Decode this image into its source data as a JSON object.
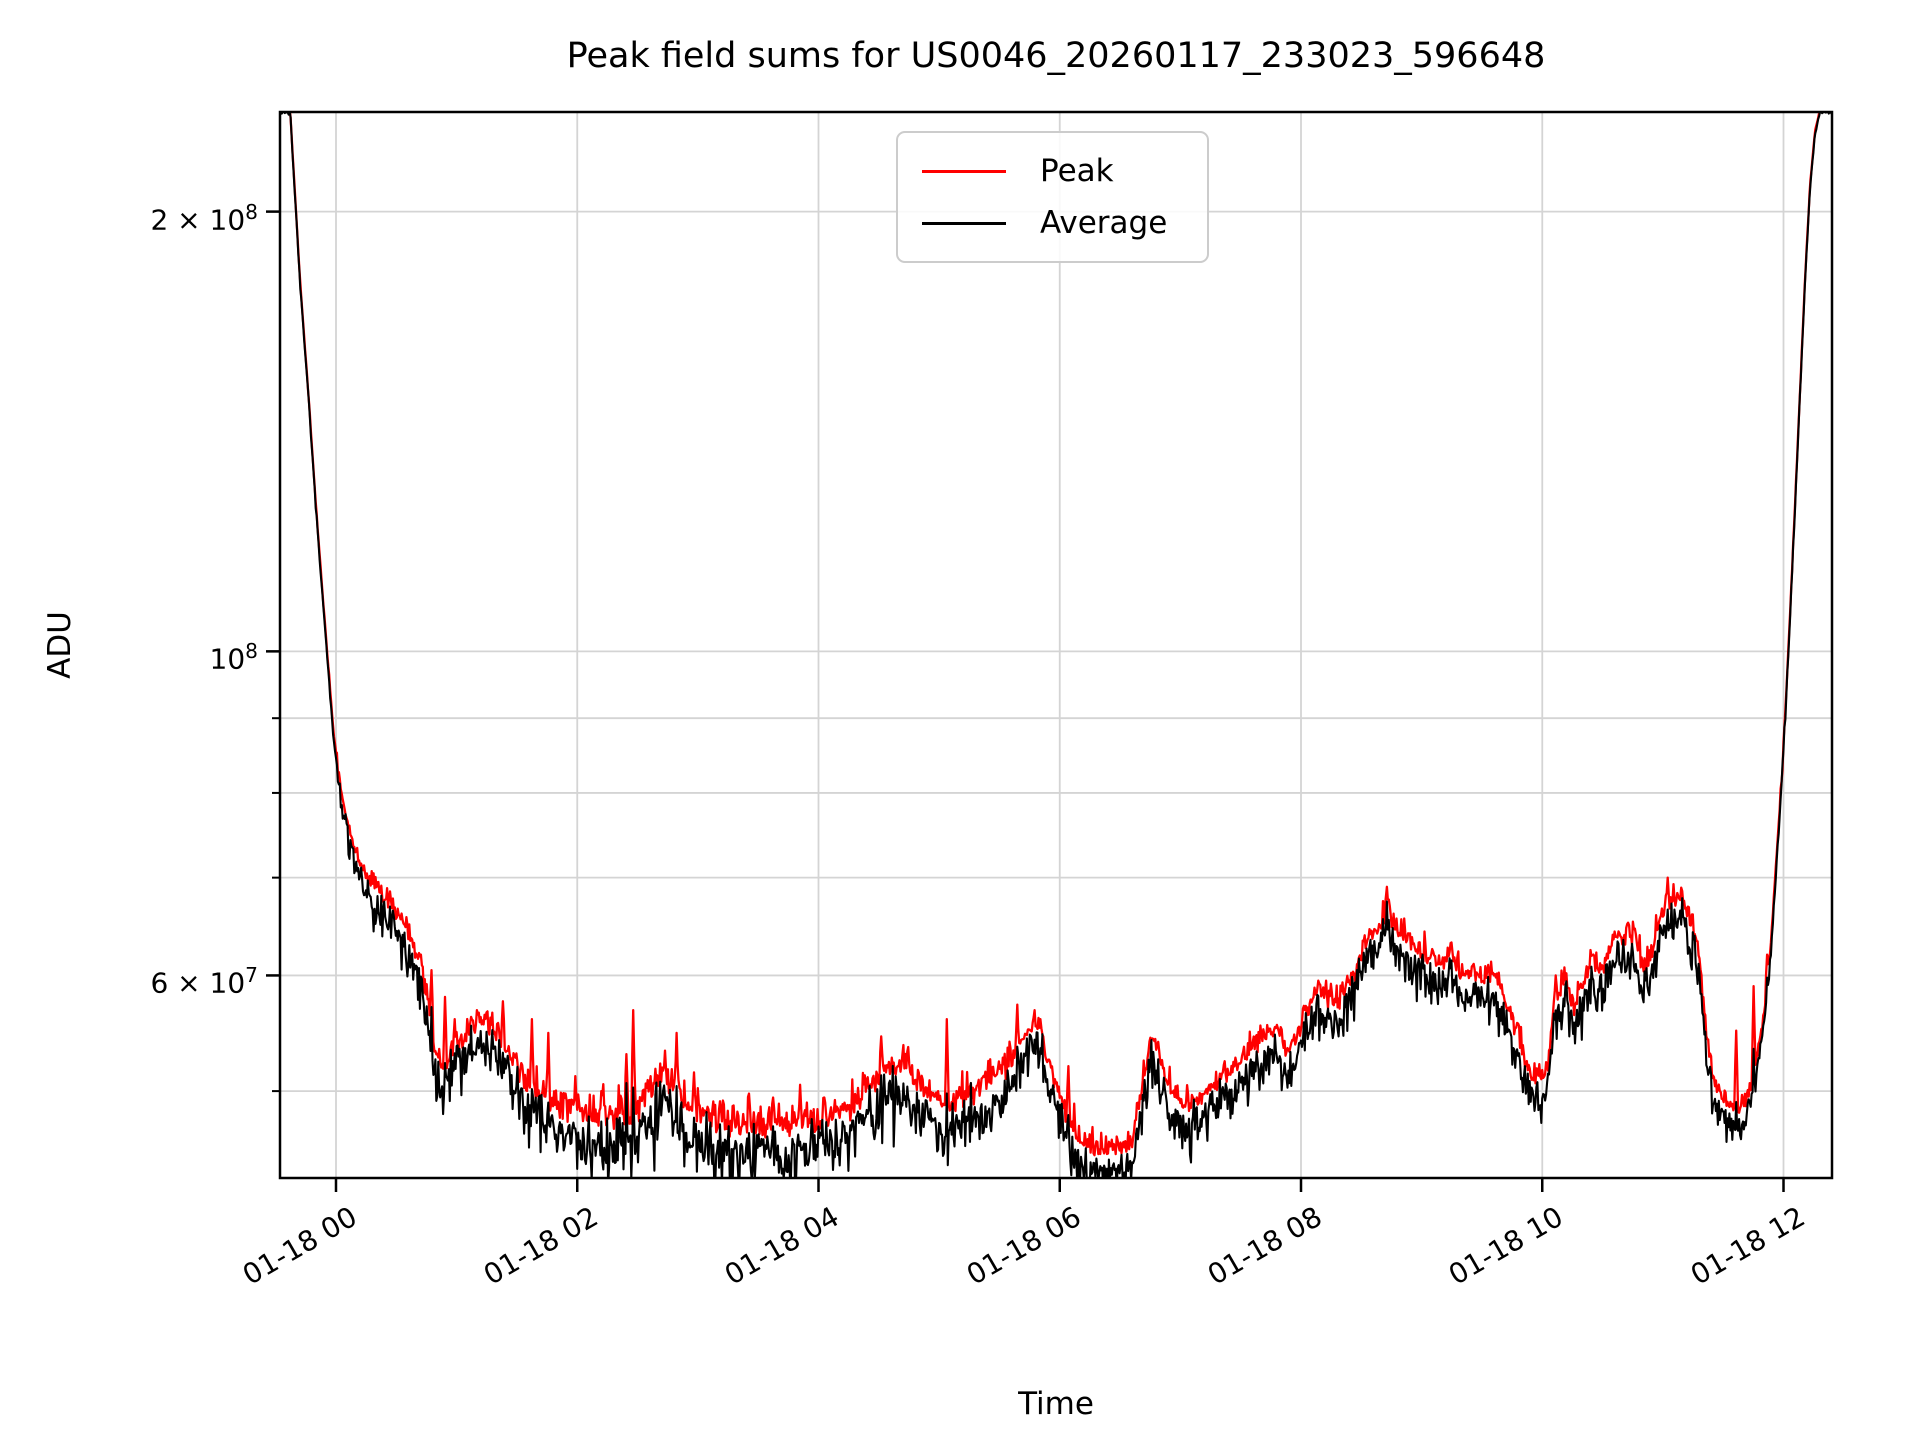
{
  "figure": {
    "background": "#ffffff",
    "grid_color": "#d4d4d4",
    "spine_color": "#000000"
  },
  "legend": {
    "entries": [
      {
        "label": "Peak",
        "color": "#ff0000"
      },
      {
        "label": "Average",
        "color": "#000000"
      }
    ]
  },
  "chart_data": {
    "type": "line",
    "title": "Peak field sums for US0046_20260117_233023_596648",
    "xlabel": "Time",
    "ylabel": "ADU",
    "yscale": "log",
    "grid": "both",
    "legend_position": "top-center",
    "x_unit": "hours relative to 01-18 00:00",
    "xlim": [
      -0.4642,
      12.402
    ],
    "ylim": [
      43600000.0,
      234000000.0
    ],
    "x_tick_hours": [
      0,
      2,
      4,
      6,
      8,
      10,
      12
    ],
    "x_tick_labels": [
      "01-18 00",
      "01-18 02",
      "01-18 04",
      "01-18 06",
      "01-18 08",
      "01-18 10",
      "01-18 12"
    ],
    "y_ticks": [
      {
        "value": 200000000.0,
        "base": "2 × 10",
        "exp": "8",
        "labeled": true
      },
      {
        "value": 100000000.0,
        "base": "10",
        "exp": "8",
        "labeled": true
      },
      {
        "value": 90000000.0,
        "labeled": false
      },
      {
        "value": 80000000.0,
        "labeled": false
      },
      {
        "value": 70000000.0,
        "labeled": false
      },
      {
        "value": 60000000.0,
        "base": "6 × 10",
        "exp": "7",
        "labeled": true
      },
      {
        "value": 50000000.0,
        "labeled": false
      }
    ],
    "series": [
      {
        "name": "Average",
        "color": "#000000",
        "anchors": [
          [
            -0.47,
            234000000.0
          ],
          [
            -0.38,
            234000000.0
          ],
          [
            -0.34,
            205000000.0
          ],
          [
            -0.3,
            180000000.0
          ],
          [
            -0.26,
            162000000.0
          ],
          [
            -0.22,
            146000000.0
          ],
          [
            -0.18,
            130000000.0
          ],
          [
            -0.14,
            117000000.0
          ],
          [
            -0.1,
            106000000.0
          ],
          [
            -0.06,
            96000000.0
          ],
          [
            -0.02,
            87000000.0
          ],
          [
            0.02,
            81500000.0
          ],
          [
            0.06,
            77500000.0
          ],
          [
            0.1,
            75000000.0
          ],
          [
            0.15,
            72000000.0
          ],
          [
            0.22,
            69500000.0
          ],
          [
            0.3,
            67500000.0
          ],
          [
            0.38,
            66200000.0
          ],
          [
            0.46,
            65000000.0
          ],
          [
            0.55,
            63500000.0
          ],
          [
            0.62,
            61500000.0
          ],
          [
            0.7,
            59000000.0
          ],
          [
            0.76,
            55500000.0
          ],
          [
            0.82,
            51500000.0
          ],
          [
            0.88,
            50000000.0
          ],
          [
            0.95,
            51200000.0
          ],
          [
            1.05,
            52500000.0
          ],
          [
            1.15,
            53500000.0
          ],
          [
            1.22,
            54000000.0
          ],
          [
            1.32,
            52800000.0
          ],
          [
            1.42,
            51200000.0
          ],
          [
            1.52,
            49500000.0
          ],
          [
            1.62,
            48200000.0
          ],
          [
            1.75,
            47200000.0
          ],
          [
            1.9,
            46600000.0
          ],
          [
            2.1,
            46000000.0
          ],
          [
            2.3,
            46000000.0
          ],
          [
            2.5,
            46800000.0
          ],
          [
            2.62,
            48200000.0
          ],
          [
            2.72,
            48800000.0
          ],
          [
            2.82,
            47800000.0
          ],
          [
            2.95,
            46500000.0
          ],
          [
            3.1,
            45800000.0
          ],
          [
            3.3,
            45500000.0
          ],
          [
            3.5,
            45300000.0
          ],
          [
            3.7,
            45500000.0
          ],
          [
            3.9,
            45500000.0
          ],
          [
            4.1,
            46000000.0
          ],
          [
            4.26,
            46500000.0
          ],
          [
            4.45,
            48500000.0
          ],
          [
            4.6,
            49500000.0
          ],
          [
            4.72,
            50000000.0
          ],
          [
            4.82,
            48500000.0
          ],
          [
            4.92,
            47700000.0
          ],
          [
            5.05,
            47000000.0
          ],
          [
            5.2,
            47500000.0
          ],
          [
            5.4,
            48500000.0
          ],
          [
            5.6,
            50500000.0
          ],
          [
            5.75,
            53000000.0
          ],
          [
            5.82,
            53500000.0
          ],
          [
            5.9,
            50500000.0
          ],
          [
            6.0,
            47500000.0
          ],
          [
            6.1,
            45500000.0
          ],
          [
            6.2,
            44400000.0
          ],
          [
            6.35,
            43800000.0
          ],
          [
            6.5,
            43800000.0
          ],
          [
            6.6,
            44500000.0
          ],
          [
            6.7,
            49500000.0
          ],
          [
            6.76,
            52800000.0
          ],
          [
            6.82,
            51000000.0
          ],
          [
            6.91,
            48500000.0
          ],
          [
            7.0,
            47500000.0
          ],
          [
            7.1,
            47200000.0
          ],
          [
            7.2,
            48000000.0
          ],
          [
            7.3,
            49000000.0
          ],
          [
            7.45,
            50000000.0
          ],
          [
            7.6,
            51500000.0
          ],
          [
            7.75,
            53000000.0
          ],
          [
            7.82,
            53000000.0
          ],
          [
            7.88,
            51200000.0
          ],
          [
            7.95,
            52000000.0
          ],
          [
            8.0,
            53500000.0
          ],
          [
            8.08,
            55500000.0
          ],
          [
            8.14,
            56800000.0
          ],
          [
            8.22,
            56000000.0
          ],
          [
            8.3,
            55500000.0
          ],
          [
            8.4,
            57500000.0
          ],
          [
            8.5,
            60000000.0
          ],
          [
            8.6,
            62000000.0
          ],
          [
            8.68,
            63000000.0
          ],
          [
            8.71,
            65000000.0
          ],
          [
            8.74,
            63000000.0
          ],
          [
            8.82,
            62000000.0
          ],
          [
            8.93,
            61000000.0
          ],
          [
            9.0,
            60000000.0
          ],
          [
            9.08,
            59500000.0
          ],
          [
            9.18,
            59000000.0
          ],
          [
            9.25,
            60000000.0
          ],
          [
            9.32,
            58000000.0
          ],
          [
            9.42,
            58200000.0
          ],
          [
            9.5,
            57500000.0
          ],
          [
            9.56,
            58200000.0
          ],
          [
            9.64,
            57200000.0
          ],
          [
            9.72,
            55000000.0
          ],
          [
            9.8,
            52800000.0
          ],
          [
            9.86,
            50500000.0
          ],
          [
            9.93,
            49500000.0
          ],
          [
            10.0,
            49500000.0
          ],
          [
            10.05,
            50500000.0
          ],
          [
            10.09,
            55000000.0
          ],
          [
            10.15,
            57000000.0
          ],
          [
            10.2,
            58000000.0
          ],
          [
            10.26,
            55000000.0
          ],
          [
            10.32,
            57000000.0
          ],
          [
            10.38,
            58500000.0
          ],
          [
            10.42,
            60000000.0
          ],
          [
            10.46,
            58700000.0
          ],
          [
            10.52,
            59000000.0
          ],
          [
            10.58,
            61500000.0
          ],
          [
            10.62,
            62500000.0
          ],
          [
            10.67,
            61500000.0
          ],
          [
            10.72,
            62000000.0
          ],
          [
            10.78,
            61000000.0
          ],
          [
            10.84,
            58800000.0
          ],
          [
            10.9,
            60000000.0
          ],
          [
            10.96,
            63000000.0
          ],
          [
            11.02,
            65000000.0
          ],
          [
            11.08,
            65500000.0
          ],
          [
            11.15,
            65500000.0
          ],
          [
            11.2,
            64000000.0
          ],
          [
            11.26,
            62500000.0
          ],
          [
            11.31,
            59000000.0
          ],
          [
            11.36,
            53000000.0
          ],
          [
            11.4,
            50000000.0
          ],
          [
            11.45,
            48500000.0
          ],
          [
            11.5,
            47800000.0
          ],
          [
            11.56,
            47300000.0
          ],
          [
            11.62,
            47200000.0
          ],
          [
            11.68,
            47800000.0
          ],
          [
            11.74,
            49500000.0
          ],
          [
            11.8,
            53000000.0
          ],
          [
            11.85,
            56500000.0
          ],
          [
            11.9,
            63000000.0
          ],
          [
            11.94,
            71000000.0
          ],
          [
            11.98,
            80000000.0
          ],
          [
            12.02,
            92000000.0
          ],
          [
            12.06,
            108000000.0
          ],
          [
            12.1,
            128000000.0
          ],
          [
            12.14,
            152000000.0
          ],
          [
            12.18,
            180000000.0
          ],
          [
            12.22,
            208000000.0
          ],
          [
            12.26,
            226000000.0
          ],
          [
            12.3,
            234000000.0
          ],
          [
            12.4,
            234000000.0
          ]
        ]
      },
      {
        "name": "Peak",
        "color": "#ff0000",
        "relation": "average times (1+ratio) with positive noise plus spikes",
        "ratio_anchors": [
          [
            -0.47,
            0.001
          ],
          [
            -0.1,
            0.004
          ],
          [
            0.1,
            0.012
          ],
          [
            0.4,
            0.02
          ],
          [
            0.9,
            0.025
          ],
          [
            1.5,
            0.03
          ],
          [
            3.0,
            0.032
          ],
          [
            5.0,
            0.03
          ],
          [
            6.4,
            0.028
          ],
          [
            8.0,
            0.028
          ],
          [
            9.5,
            0.025
          ],
          [
            10.8,
            0.022
          ],
          [
            11.5,
            0.025
          ],
          [
            11.85,
            0.012
          ],
          [
            12.0,
            0.006
          ],
          [
            12.2,
            0.002
          ],
          [
            12.4,
            0.001
          ]
        ],
        "spikes": [
          [
            0.34,
            69500000.0
          ],
          [
            0.4,
            67500000.0
          ],
          [
            0.45,
            68500000.0
          ],
          [
            0.52,
            66000000.0
          ],
          [
            0.57,
            65000000.0
          ],
          [
            0.63,
            63500000.0
          ],
          [
            0.7,
            62000000.0
          ],
          [
            0.79,
            60500000.0
          ],
          [
            0.9,
            58000000.0
          ],
          [
            0.98,
            56000000.0
          ],
          [
            1.12,
            56200000.0
          ],
          [
            1.25,
            56600000.0
          ],
          [
            1.38,
            57600000.0
          ],
          [
            1.62,
            56000000.0
          ],
          [
            1.76,
            54800000.0
          ],
          [
            1.98,
            51200000.0
          ],
          [
            2.2,
            50000000.0
          ],
          [
            2.41,
            53000000.0
          ],
          [
            2.46,
            56800000.0
          ],
          [
            2.73,
            53300000.0
          ],
          [
            2.82,
            54800000.0
          ],
          [
            2.97,
            51500000.0
          ],
          [
            3.18,
            49200000.0
          ],
          [
            3.42,
            49800000.0
          ],
          [
            3.62,
            49500000.0
          ],
          [
            3.85,
            50500000.0
          ],
          [
            4.05,
            49500000.0
          ],
          [
            4.52,
            54500000.0
          ],
          [
            4.66,
            52000000.0
          ],
          [
            5.06,
            56000000.0
          ],
          [
            5.35,
            51000000.0
          ],
          [
            5.65,
            57300000.0
          ],
          [
            5.84,
            56000000.0
          ],
          [
            6.07,
            52000000.0
          ],
          [
            6.3,
            46200000.0
          ],
          [
            6.45,
            46000000.0
          ],
          [
            6.76,
            54200000.0
          ],
          [
            7.1,
            49500000.0
          ],
          [
            7.35,
            51500000.0
          ],
          [
            7.6,
            54000000.0
          ],
          [
            7.8,
            55500000.0
          ],
          [
            8.02,
            57200000.0
          ],
          [
            8.14,
            59500000.0
          ],
          [
            8.45,
            59500000.0
          ],
          [
            8.71,
            69000000.0
          ],
          [
            9.25,
            63200000.0
          ],
          [
            9.55,
            61000000.0
          ],
          [
            10.11,
            60000000.0
          ],
          [
            10.42,
            62000000.0
          ],
          [
            10.62,
            63700000.0
          ],
          [
            11.04,
            70000000.0
          ],
          [
            11.61,
            55000000.0
          ],
          [
            11.75,
            59000000.0
          ],
          [
            11.86,
            62000000.0
          ],
          [
            11.98,
            81500000.0
          ]
        ]
      }
    ],
    "noise": {
      "seed": 42,
      "sample_step_hours": 0.008,
      "amp_anchors_log10": [
        [
          -0.47,
          0.0006
        ],
        [
          -0.1,
          0.001
        ],
        [
          0.1,
          0.0035
        ],
        [
          0.35,
          0.006
        ],
        [
          0.8,
          0.008
        ],
        [
          1.3,
          0.0085
        ],
        [
          2.0,
          0.009
        ],
        [
          4.0,
          0.009
        ],
        [
          5.5,
          0.008
        ],
        [
          6.3,
          0.0075
        ],
        [
          7.5,
          0.007
        ],
        [
          9.0,
          0.0065
        ],
        [
          10.5,
          0.006
        ],
        [
          11.3,
          0.0065
        ],
        [
          11.75,
          0.004
        ],
        [
          11.95,
          0.0015
        ],
        [
          12.15,
          0.0008
        ],
        [
          12.4,
          0.0005
        ]
      ]
    }
  }
}
